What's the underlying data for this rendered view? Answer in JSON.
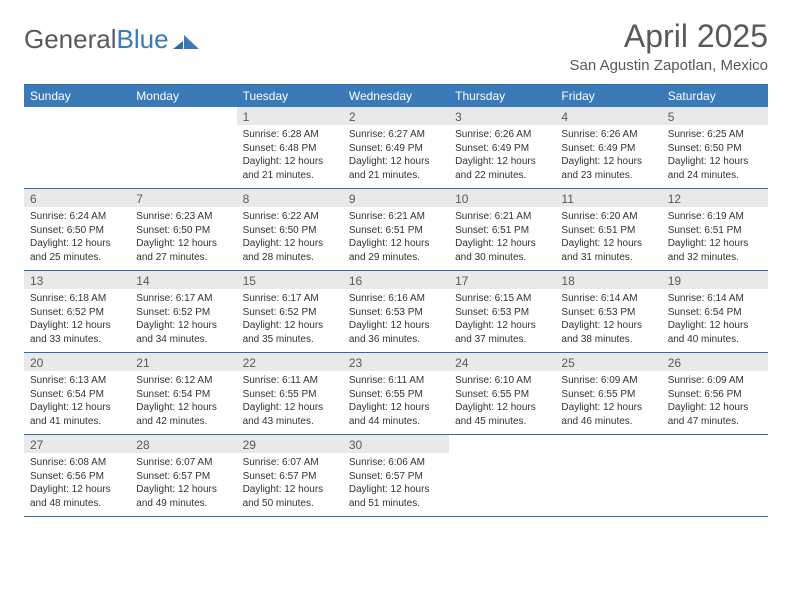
{
  "brand": {
    "name_a": "General",
    "name_b": "Blue"
  },
  "header": {
    "title": "April 2025",
    "subtitle": "San Agustin Zapotlan, Mexico"
  },
  "colors": {
    "header_bar": "#3a7ab8",
    "header_text": "#ffffff",
    "rule": "#2e6da4",
    "daynum_bg": "#e9e9e9",
    "text": "#333333",
    "muted": "#595959",
    "background": "#ffffff"
  },
  "fontsizes": {
    "title": 32,
    "subtitle": 15,
    "dow": 12,
    "daynum": 12,
    "cell": 10
  },
  "days_of_week": [
    "Sunday",
    "Monday",
    "Tuesday",
    "Wednesday",
    "Thursday",
    "Friday",
    "Saturday"
  ],
  "cells": [
    {
      "day": "",
      "sunrise": "",
      "sunset": "",
      "daylight": ""
    },
    {
      "day": "",
      "sunrise": "",
      "sunset": "",
      "daylight": ""
    },
    {
      "day": "1",
      "sunrise": "Sunrise: 6:28 AM",
      "sunset": "Sunset: 6:48 PM",
      "daylight": "Daylight: 12 hours and 21 minutes."
    },
    {
      "day": "2",
      "sunrise": "Sunrise: 6:27 AM",
      "sunset": "Sunset: 6:49 PM",
      "daylight": "Daylight: 12 hours and 21 minutes."
    },
    {
      "day": "3",
      "sunrise": "Sunrise: 6:26 AM",
      "sunset": "Sunset: 6:49 PM",
      "daylight": "Daylight: 12 hours and 22 minutes."
    },
    {
      "day": "4",
      "sunrise": "Sunrise: 6:26 AM",
      "sunset": "Sunset: 6:49 PM",
      "daylight": "Daylight: 12 hours and 23 minutes."
    },
    {
      "day": "5",
      "sunrise": "Sunrise: 6:25 AM",
      "sunset": "Sunset: 6:50 PM",
      "daylight": "Daylight: 12 hours and 24 minutes."
    },
    {
      "day": "6",
      "sunrise": "Sunrise: 6:24 AM",
      "sunset": "Sunset: 6:50 PM",
      "daylight": "Daylight: 12 hours and 25 minutes."
    },
    {
      "day": "7",
      "sunrise": "Sunrise: 6:23 AM",
      "sunset": "Sunset: 6:50 PM",
      "daylight": "Daylight: 12 hours and 27 minutes."
    },
    {
      "day": "8",
      "sunrise": "Sunrise: 6:22 AM",
      "sunset": "Sunset: 6:50 PM",
      "daylight": "Daylight: 12 hours and 28 minutes."
    },
    {
      "day": "9",
      "sunrise": "Sunrise: 6:21 AM",
      "sunset": "Sunset: 6:51 PM",
      "daylight": "Daylight: 12 hours and 29 minutes."
    },
    {
      "day": "10",
      "sunrise": "Sunrise: 6:21 AM",
      "sunset": "Sunset: 6:51 PM",
      "daylight": "Daylight: 12 hours and 30 minutes."
    },
    {
      "day": "11",
      "sunrise": "Sunrise: 6:20 AM",
      "sunset": "Sunset: 6:51 PM",
      "daylight": "Daylight: 12 hours and 31 minutes."
    },
    {
      "day": "12",
      "sunrise": "Sunrise: 6:19 AM",
      "sunset": "Sunset: 6:51 PM",
      "daylight": "Daylight: 12 hours and 32 minutes."
    },
    {
      "day": "13",
      "sunrise": "Sunrise: 6:18 AM",
      "sunset": "Sunset: 6:52 PM",
      "daylight": "Daylight: 12 hours and 33 minutes."
    },
    {
      "day": "14",
      "sunrise": "Sunrise: 6:17 AM",
      "sunset": "Sunset: 6:52 PM",
      "daylight": "Daylight: 12 hours and 34 minutes."
    },
    {
      "day": "15",
      "sunrise": "Sunrise: 6:17 AM",
      "sunset": "Sunset: 6:52 PM",
      "daylight": "Daylight: 12 hours and 35 minutes."
    },
    {
      "day": "16",
      "sunrise": "Sunrise: 6:16 AM",
      "sunset": "Sunset: 6:53 PM",
      "daylight": "Daylight: 12 hours and 36 minutes."
    },
    {
      "day": "17",
      "sunrise": "Sunrise: 6:15 AM",
      "sunset": "Sunset: 6:53 PM",
      "daylight": "Daylight: 12 hours and 37 minutes."
    },
    {
      "day": "18",
      "sunrise": "Sunrise: 6:14 AM",
      "sunset": "Sunset: 6:53 PM",
      "daylight": "Daylight: 12 hours and 38 minutes."
    },
    {
      "day": "19",
      "sunrise": "Sunrise: 6:14 AM",
      "sunset": "Sunset: 6:54 PM",
      "daylight": "Daylight: 12 hours and 40 minutes."
    },
    {
      "day": "20",
      "sunrise": "Sunrise: 6:13 AM",
      "sunset": "Sunset: 6:54 PM",
      "daylight": "Daylight: 12 hours and 41 minutes."
    },
    {
      "day": "21",
      "sunrise": "Sunrise: 6:12 AM",
      "sunset": "Sunset: 6:54 PM",
      "daylight": "Daylight: 12 hours and 42 minutes."
    },
    {
      "day": "22",
      "sunrise": "Sunrise: 6:11 AM",
      "sunset": "Sunset: 6:55 PM",
      "daylight": "Daylight: 12 hours and 43 minutes."
    },
    {
      "day": "23",
      "sunrise": "Sunrise: 6:11 AM",
      "sunset": "Sunset: 6:55 PM",
      "daylight": "Daylight: 12 hours and 44 minutes."
    },
    {
      "day": "24",
      "sunrise": "Sunrise: 6:10 AM",
      "sunset": "Sunset: 6:55 PM",
      "daylight": "Daylight: 12 hours and 45 minutes."
    },
    {
      "day": "25",
      "sunrise": "Sunrise: 6:09 AM",
      "sunset": "Sunset: 6:55 PM",
      "daylight": "Daylight: 12 hours and 46 minutes."
    },
    {
      "day": "26",
      "sunrise": "Sunrise: 6:09 AM",
      "sunset": "Sunset: 6:56 PM",
      "daylight": "Daylight: 12 hours and 47 minutes."
    },
    {
      "day": "27",
      "sunrise": "Sunrise: 6:08 AM",
      "sunset": "Sunset: 6:56 PM",
      "daylight": "Daylight: 12 hours and 48 minutes."
    },
    {
      "day": "28",
      "sunrise": "Sunrise: 6:07 AM",
      "sunset": "Sunset: 6:57 PM",
      "daylight": "Daylight: 12 hours and 49 minutes."
    },
    {
      "day": "29",
      "sunrise": "Sunrise: 6:07 AM",
      "sunset": "Sunset: 6:57 PM",
      "daylight": "Daylight: 12 hours and 50 minutes."
    },
    {
      "day": "30",
      "sunrise": "Sunrise: 6:06 AM",
      "sunset": "Sunset: 6:57 PM",
      "daylight": "Daylight: 12 hours and 51 minutes."
    },
    {
      "day": "",
      "sunrise": "",
      "sunset": "",
      "daylight": ""
    },
    {
      "day": "",
      "sunrise": "",
      "sunset": "",
      "daylight": ""
    },
    {
      "day": "",
      "sunrise": "",
      "sunset": "",
      "daylight": ""
    }
  ]
}
